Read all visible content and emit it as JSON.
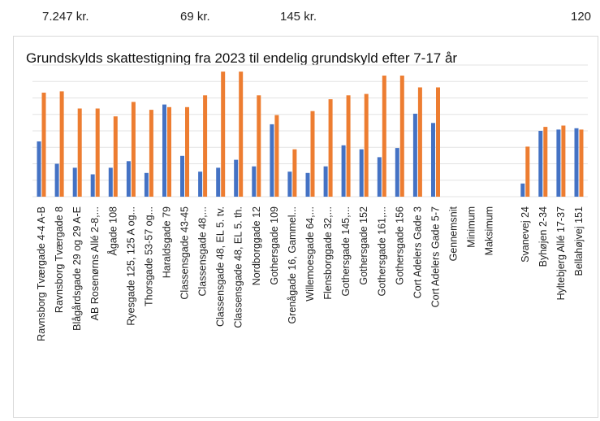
{
  "header_values": [
    "7.247 kr.",
    "69 kr.",
    "145 kr.",
    "120"
  ],
  "chart_data": {
    "type": "bar",
    "title": "Grundskylds skattestigning fra 2023 til endelig grundskyld efter 7-17 år",
    "xlabel": "",
    "ylabel": "",
    "ylim": [
      0,
      100
    ],
    "grid": true,
    "legend": "none",
    "colors": [
      "#4472C4",
      "#ED7D31"
    ],
    "categories": [
      "Ravnsborg Tværgade 4-4 A-B",
      "Ravnsborg Tværgade 8",
      "Blågårdsgade 29 og 29 A-E",
      "AB Rosenørns Allé 2-8,...",
      "Ågade 108",
      "Ryesgade 125, 125 A og...",
      "Thorsgade 53-57 og...",
      "Haraldsgade 79",
      "Classensgade 43-45",
      "Classensgade 48,...",
      "Classensgade 48, EL 5. tv.",
      "Classensgade 48, EL 5. th.",
      "Nordborggade 12",
      "Gothersgade 109",
      "Grenågade 16, Gammel...",
      "Willemoesgade 64,...",
      "Flensborggade 32,...",
      "Gothersgade 145,...",
      "Gothersgade 152",
      "Gothersgade 161,...",
      "Gothersgade 156",
      "Cort Adelers Gade 3",
      "Cort Adelers Gade 5-7",
      "Gennemsnit",
      "Minimum",
      "Maksimum",
      "",
      "Svanevej 24",
      "Byhøjen 2-34",
      "Hyltebjerg Allé 17-37",
      "Bellahøjvej 151"
    ],
    "series": [
      {
        "values": [
          42,
          25,
          22,
          17,
          22,
          27,
          18,
          70,
          31,
          19,
          22,
          28,
          23,
          55,
          19,
          18,
          23,
          39,
          36,
          30,
          37,
          63,
          56,
          null,
          null,
          null,
          null,
          10,
          50,
          51,
          52
        ]
      },
      {
        "values": [
          79,
          80,
          67,
          67,
          61,
          72,
          66,
          68,
          68,
          77,
          95,
          95,
          77,
          62,
          36,
          65,
          74,
          77,
          78,
          92,
          92,
          83,
          83,
          null,
          null,
          null,
          null,
          38,
          53,
          54,
          51
        ]
      }
    ]
  }
}
